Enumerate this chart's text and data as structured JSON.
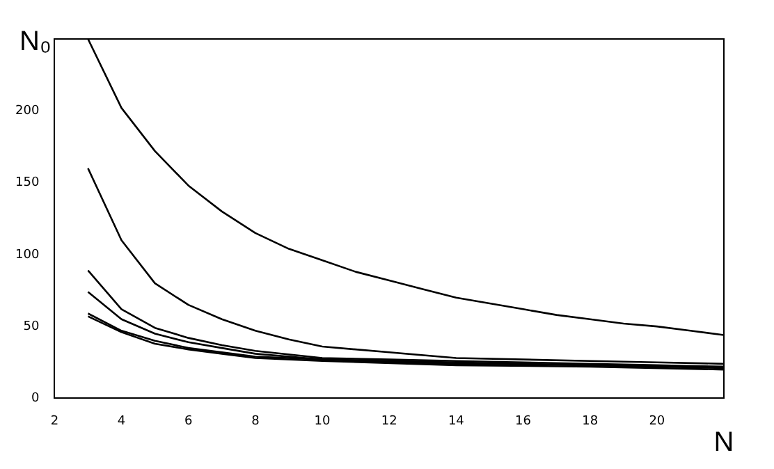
{
  "chart_data": {
    "type": "line",
    "xlabel": "N",
    "ylabel": "N₀",
    "xlim": [
      2,
      22
    ],
    "ylim": [
      0,
      250
    ],
    "xticks": [
      2,
      4,
      6,
      8,
      10,
      12,
      14,
      16,
      18,
      20
    ],
    "yticks": [
      0,
      50,
      100,
      150,
      200
    ],
    "grid": false,
    "legend": false,
    "marker": "none",
    "line_style": "solid",
    "series": [
      {
        "color": "#000000",
        "x": [
          3,
          4,
          5,
          6,
          7,
          8,
          9,
          10,
          11,
          12,
          13,
          14,
          15,
          16,
          17,
          18,
          19,
          20,
          21,
          22
        ],
        "values": [
          250,
          202,
          172,
          148,
          130,
          115,
          104,
          96,
          88,
          82,
          76,
          70,
          66,
          62,
          58,
          55,
          52,
          50,
          47,
          44
        ]
      },
      {
        "color": "#000000",
        "x": [
          3,
          4,
          5,
          6,
          7,
          8,
          9,
          10,
          12,
          14,
          16,
          18,
          20,
          22
        ],
        "values": [
          160,
          110,
          80,
          65,
          55,
          47,
          41,
          36,
          32,
          28,
          27,
          26,
          25,
          24
        ]
      },
      {
        "color": "#000000",
        "x": [
          3,
          4,
          5,
          6,
          7,
          8,
          10,
          12,
          14,
          16,
          18,
          20,
          22
        ],
        "values": [
          89,
          62,
          49,
          42,
          37,
          33,
          28,
          27,
          26,
          25,
          24,
          23,
          22
        ]
      },
      {
        "color": "#000000",
        "x": [
          3,
          4,
          5,
          6,
          7,
          8,
          10,
          14,
          18,
          22
        ],
        "values": [
          74,
          55,
          45,
          39,
          35,
          31,
          27,
          25,
          23,
          22
        ]
      },
      {
        "color": "#000000",
        "x": [
          3,
          4,
          5,
          6,
          7,
          8,
          10,
          14,
          18,
          22
        ],
        "values": [
          59,
          47,
          40,
          35,
          32,
          29,
          27,
          24,
          23,
          21
        ]
      },
      {
        "color": "#000000",
        "x": [
          3,
          4,
          5,
          6,
          7,
          8,
          10,
          14,
          18,
          22
        ],
        "values": [
          57,
          46,
          38,
          34,
          31,
          28,
          26,
          23,
          22,
          20
        ]
      }
    ]
  }
}
